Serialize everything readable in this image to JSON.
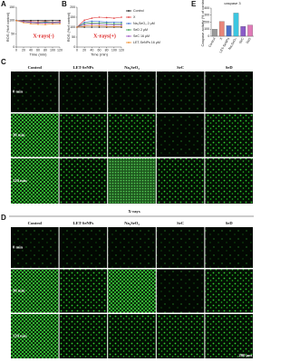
{
  "chart_data": [
    {
      "type": "line",
      "label": "A",
      "annotation": "X-rays(-)",
      "y_label": "ROS (%of control)",
      "x_label": "Time (min)",
      "x": [
        0,
        20,
        40,
        60,
        80,
        100,
        120
      ],
      "xlim": [
        0,
        120
      ],
      "xticks": [
        0,
        20,
        40,
        60,
        80,
        100,
        120
      ],
      "ylim": [
        0,
        150
      ],
      "yticks": [
        0,
        50,
        100,
        150
      ],
      "series": [
        {
          "color": "#111111",
          "values": [
            100,
            100,
            100,
            100,
            100,
            100,
            100
          ]
        },
        {
          "color": "#e23b3b",
          "values": [
            100,
            98,
            96,
            95,
            97,
            94,
            96
          ]
        },
        {
          "color": "#3d6fd1",
          "values": [
            100,
            95,
            92,
            90,
            93,
            91,
            92
          ]
        },
        {
          "color": "#2e9c4a",
          "values": [
            100,
            97,
            94,
            92,
            95,
            93,
            94
          ]
        },
        {
          "color": "#9b4fc4",
          "values": [
            100,
            96,
            93,
            91,
            90,
            92,
            93
          ]
        },
        {
          "color": "#f08a24",
          "values": [
            100,
            92,
            88,
            86,
            85,
            87,
            88
          ]
        }
      ]
    },
    {
      "type": "line",
      "label": "B",
      "annotation": "X-rays(+)",
      "y_label": "ROS (%of control)",
      "x_label": "Time (min)",
      "x": [
        0,
        20,
        40,
        60,
        80,
        100,
        120
      ],
      "xlim": [
        0,
        120
      ],
      "xticks": [
        0,
        20,
        40,
        60,
        80,
        100,
        120
      ],
      "ylim": [
        0,
        200
      ],
      "yticks": [
        0,
        50,
        100,
        150,
        200
      ],
      "series": [
        {
          "name": "Control",
          "color": "#111111",
          "values": [
            100,
            100,
            100,
            100,
            100,
            100,
            100
          ]
        },
        {
          "name": "X",
          "color": "#e23b3b",
          "values": [
            100,
            135,
            145,
            150,
            148,
            145,
            150
          ]
        },
        {
          "name": "Na₂SeO₃ 2 μM",
          "color": "#3d6fd1",
          "values": [
            100,
            125,
            130,
            128,
            126,
            124,
            125
          ]
        },
        {
          "name": "SeD 2 μM",
          "color": "#2e9c4a",
          "values": [
            100,
            118,
            122,
            120,
            119,
            117,
            118
          ]
        },
        {
          "name": "SeC 16 μM",
          "color": "#9b4fc4",
          "values": [
            100,
            112,
            115,
            114,
            112,
            110,
            111
          ]
        },
        {
          "name": "LET-SeNPs 16 μM",
          "color": "#f08a24",
          "values": [
            100,
            105,
            108,
            106,
            104,
            103,
            104
          ]
        }
      ]
    },
    {
      "type": "bar",
      "label": "E",
      "title": "caspase 3",
      "y_label": "Caspase activity (% of control)",
      "categories": [
        "Control",
        "X",
        "LET-SeNPs",
        "Na₂SeO₃",
        "SeC",
        "SeD"
      ],
      "values": [
        100,
        210,
        150,
        330,
        140,
        160
      ],
      "colors": [
        "#9a9a9a",
        "#e8867a",
        "#4a6fc9",
        "#3cc6e0",
        "#8a5cc8",
        "#e07ab8"
      ],
      "ylim": [
        0,
        400
      ],
      "yticks": [
        0,
        100,
        200,
        300,
        400
      ]
    }
  ],
  "panel_c": {
    "label": "C",
    "columns": [
      "Control",
      "LET-SeNPs",
      "Na₂SeO₃",
      "SeC",
      "SeD"
    ],
    "rows": [
      "0 min",
      "30 min",
      "120 min"
    ]
  },
  "divider": "X-rays",
  "panel_d": {
    "label": "D",
    "columns": [
      "Control",
      "LET-SeNPs",
      "Na₂SeO₃",
      "SeC",
      "SeD"
    ],
    "rows": [
      "0 min",
      "30 min",
      "120 min"
    ],
    "scale_bar": "200 μm"
  }
}
